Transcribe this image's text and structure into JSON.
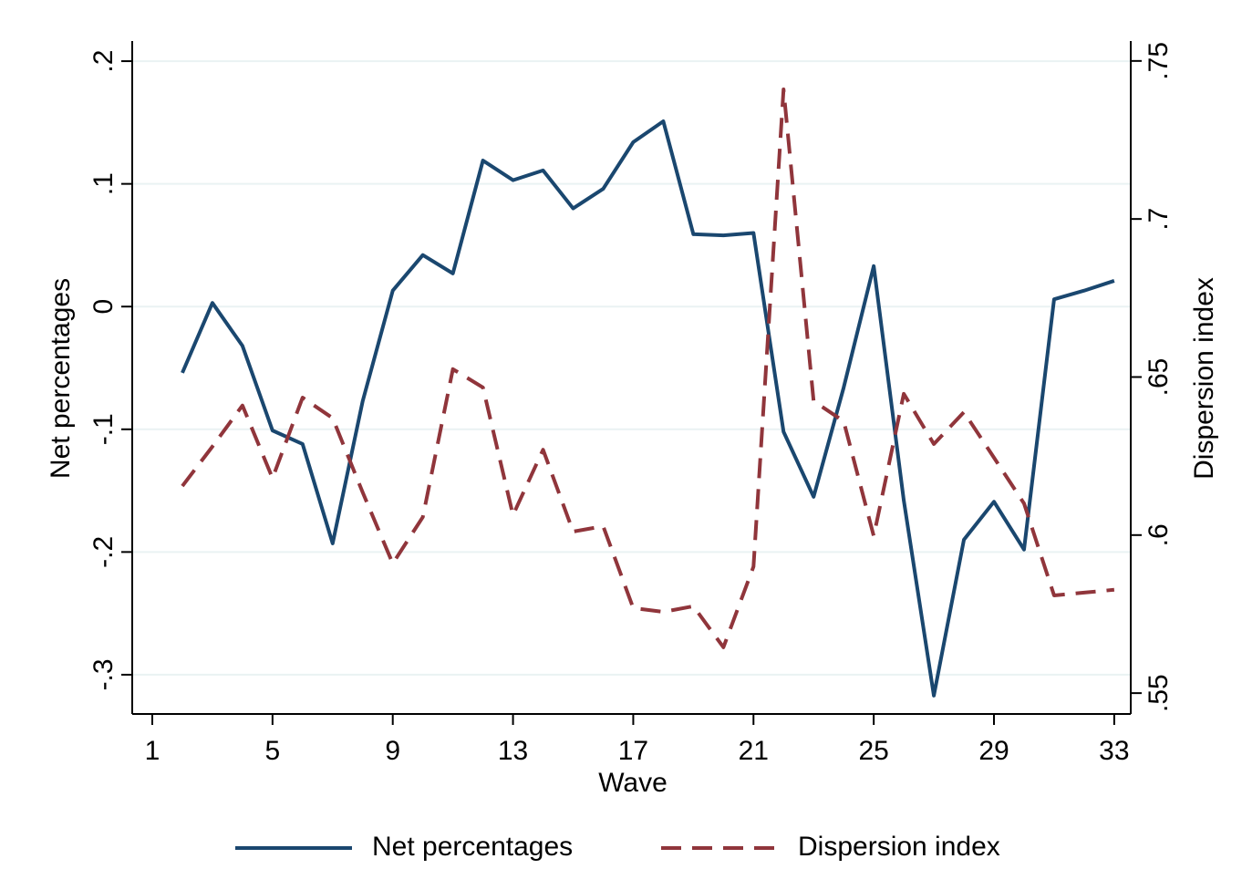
{
  "chart_data": {
    "type": "line",
    "x_label": "Wave",
    "y_label": "Net percentages",
    "y2_label": "Dispersion index",
    "x": [
      2,
      3,
      4,
      5,
      6,
      7,
      8,
      9,
      10,
      11,
      12,
      13,
      14,
      15,
      16,
      17,
      18,
      19,
      20,
      21,
      22,
      23,
      24,
      25,
      26,
      27,
      28,
      29,
      30,
      31,
      32,
      33
    ],
    "series": [
      {
        "name": "Net percentages",
        "color": "#1a476f",
        "dash": "solid",
        "values": [
          -0.054,
          0.003,
          -0.032,
          -0.101,
          -0.112,
          -0.193,
          -0.077,
          0.013,
          0.042,
          0.027,
          0.119,
          0.103,
          0.111,
          0.08,
          0.096,
          0.134,
          0.151,
          0.059,
          0.058,
          0.06,
          -0.102,
          -0.155,
          -0.066,
          0.033,
          -0.158,
          -0.317,
          -0.19,
          -0.159,
          -0.198,
          0.006,
          0.013,
          0.021
        ]
      },
      {
        "name": "Dispersion index",
        "color": "#90353b",
        "dash": "dashed",
        "axis": "y2",
        "values": [
          0.6155,
          0.628,
          0.641,
          0.618,
          0.6435,
          0.637,
          0.6135,
          0.591,
          0.6057,
          0.6525,
          0.6467,
          0.6063,
          0.627,
          0.6011,
          0.6028,
          0.5769,
          0.5757,
          0.5775,
          0.5645,
          0.59,
          0.741,
          0.6424,
          0.636,
          0.5997,
          0.6447,
          0.6288,
          0.6389,
          0.6245,
          0.61,
          0.5809,
          0.5818,
          0.5827
        ]
      }
    ],
    "xlim": [
      0.333,
      33.55
    ],
    "xticks": [
      1,
      5,
      9,
      13,
      17,
      21,
      25,
      29,
      33
    ],
    "ylim": [
      -0.332,
      0.2164
    ],
    "yticks": [
      {
        "value": -0.3,
        "label": "-.3"
      },
      {
        "value": -0.2,
        "label": "-.2"
      },
      {
        "value": -0.1,
        "label": "-.1"
      },
      0,
      {
        "value": 0.1,
        "label": ".1"
      },
      {
        "value": 0.2,
        "label": ".2"
      }
    ],
    "y2lim": [
      0.5434,
      0.7563
    ],
    "y2ticks": [
      {
        "value": 0.55,
        "label": ".55"
      },
      {
        "value": 0.6,
        "label": ".6"
      },
      {
        "value": 0.65,
        "label": ".65"
      },
      {
        "value": 0.7,
        "label": ".7"
      },
      {
        "value": 0.75,
        "label": ".75"
      }
    ],
    "grid": true,
    "legend": "bottom"
  }
}
